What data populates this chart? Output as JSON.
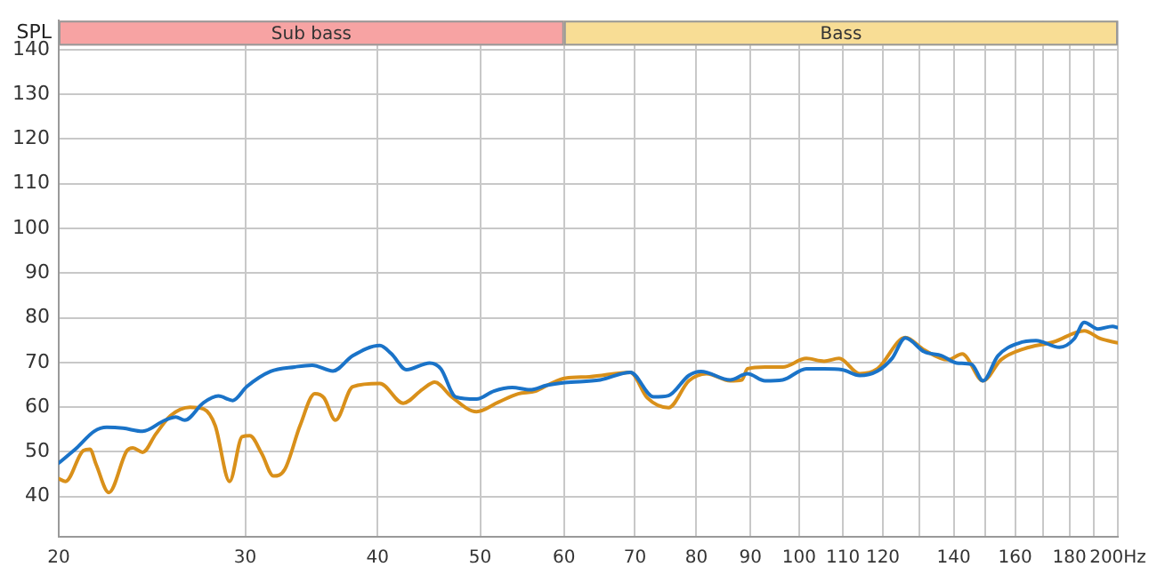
{
  "chart_data": {
    "type": "line",
    "ylabel": "SPL",
    "log": "x",
    "grid": true,
    "legend": false,
    "marker": "none",
    "line_style": "solid",
    "xlim": [
      20,
      200
    ],
    "ylim": [
      31,
      146.5
    ],
    "xticks": [
      20,
      30,
      40,
      50,
      60,
      70,
      80,
      90,
      100,
      110,
      120,
      {
        "value": 130,
        "label": null
      },
      140,
      {
        "value": 150,
        "label": null
      },
      160,
      {
        "value": 170,
        "label": null
      },
      180,
      {
        "value": 190,
        "label": null
      },
      {
        "value": 200,
        "label": "200Hz"
      }
    ],
    "yticks": [
      40,
      50,
      60,
      70,
      80,
      90,
      100,
      110,
      120,
      130,
      140
    ],
    "bands": [
      {
        "axis": "x",
        "from": 20,
        "to": 60,
        "label": "Sub bass",
        "color": "#f7a3a3"
      },
      {
        "axis": "x",
        "from": 60,
        "to": 200,
        "label": "Bass",
        "color": "#f8dd95"
      }
    ],
    "series": [
      {
        "color": "#1a73c8",
        "x": [
          20,
          20.8,
          21.6,
          22.2,
          23.0,
          24.0,
          25.2,
          25.8,
          26.3,
          27.4,
          28.3,
          29.2,
          30.1,
          31.7,
          33.4,
          34.7,
          36.3,
          37.9,
          40.2,
          41.2,
          42.6,
          44.8,
          45.9,
          47.4,
          49.6,
          51.5,
          53.6,
          55.7,
          57.8,
          60.1,
          64.9,
          69.3,
          72.9,
          75.3,
          78.7,
          80.8,
          86.1,
          89.4,
          92.9,
          96.5,
          101.6,
          105.6,
          109.8,
          114.1,
          118.6,
          122.4,
          126.0,
          131.3,
          136.4,
          140.9,
          145.5,
          149.2,
          154.1,
          161.1,
          167.4,
          176.2,
          181.9,
          185.9,
          191.5,
          197.7,
          200
        ],
        "values": [
          47.5,
          50.9,
          54.6,
          55.5,
          55.3,
          54.6,
          57.1,
          57.8,
          57.1,
          61,
          62.5,
          61.5,
          64.6,
          68,
          69,
          69.4,
          68.1,
          71.5,
          73.8,
          72,
          68.4,
          69.9,
          68.6,
          62.3,
          61.8,
          63.6,
          64.4,
          63.9,
          64.9,
          65.5,
          66.1,
          67.8,
          62.3,
          62.6,
          67.1,
          68,
          66.1,
          67.5,
          65.9,
          66.1,
          68.6,
          68.6,
          68.4,
          67.1,
          68.1,
          70.9,
          75.5,
          72.4,
          71.5,
          69.9,
          69.6,
          65.9,
          71.5,
          74.3,
          74.9,
          73.4,
          75.3,
          79,
          77.5,
          78.1,
          77.8
        ]
      },
      {
        "color": "#d9901a",
        "x": [
          20,
          20.3,
          21.1,
          21.4,
          21.7,
          22.3,
          23.2,
          23.5,
          24.0,
          24.7,
          25.5,
          26.6,
          27.4,
          28.1,
          29.0,
          29.8,
          30.3,
          31.1,
          31.9,
          32.7,
          33.8,
          34.9,
          35.6,
          36.5,
          37.9,
          40.2,
          42.3,
          44.1,
          45.3,
          47.0,
          49.6,
          52.0,
          54.3,
          56.4,
          58.3,
          60.2,
          63.4,
          69.3,
          71.9,
          75.3,
          78.7,
          81.8,
          86.1,
          88.3,
          89.4,
          92.9,
          96.5,
          101.6,
          105.6,
          109.1,
          114.1,
          118.6,
          126.0,
          131.3,
          138.2,
          142.6,
          149.2,
          155.1,
          163.2,
          173.9,
          185.9,
          192.7,
          200
        ],
        "values": [
          44,
          43.4,
          50.3,
          50.6,
          47.1,
          40.9,
          50.3,
          50.9,
          49.9,
          54,
          58.1,
          60,
          59.6,
          55.9,
          43.4,
          53.4,
          53.6,
          49.6,
          44.6,
          46.1,
          55.9,
          63,
          62.1,
          57.1,
          64.6,
          65.3,
          60.9,
          64,
          65.6,
          62.3,
          59,
          61.1,
          63,
          63.6,
          65.3,
          66.5,
          66.8,
          67.8,
          62.1,
          59.9,
          65.9,
          67.5,
          65.9,
          66.1,
          68.6,
          69,
          69,
          70.9,
          70.3,
          70.9,
          67.5,
          68.6,
          75.6,
          72.8,
          70.6,
          71.9,
          65.9,
          70.6,
          73.1,
          74.6,
          77.1,
          75.3,
          74.4
        ]
      }
    ]
  }
}
